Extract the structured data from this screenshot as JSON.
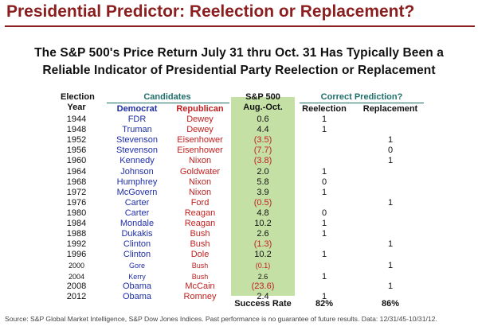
{
  "title": "Presidential Predictor: Reelection or Replacement?",
  "subtitle_line1": "The S&P 500's Price Return July 31 thru Oct. 31 Has Typically Been a",
  "subtitle_line2": "Reliable Indicator of Presidential Party Reelection or Replacement",
  "chart_data": {
    "type": "table",
    "headers": {
      "election_top": "Election",
      "election_bottom": "Year",
      "candidates": "Candidates",
      "democrat": "Democrat",
      "republican": "Republican",
      "sp_top": "S&P 500",
      "sp_bottom": "Aug.-Oct.",
      "prediction": "Correct Prediction?",
      "reelection": "Reelection",
      "replacement": "Replacement"
    },
    "rows": [
      {
        "year": "1944",
        "dem": "FDR",
        "rep": "Dewey",
        "value": "0.6",
        "reelection": "1",
        "replacement": ""
      },
      {
        "year": "1948",
        "dem": "Truman",
        "rep": "Dewey",
        "value": "4.4",
        "reelection": "1",
        "replacement": ""
      },
      {
        "year": "1952",
        "dem": "Stevenson",
        "rep": "Eisenhower",
        "value": "(3.5)",
        "reelection": "",
        "replacement": "1"
      },
      {
        "year": "1956",
        "dem": "Stevenson",
        "rep": "Eisenhower",
        "value": "(7.7)",
        "reelection": "",
        "replacement": "0"
      },
      {
        "year": "1960",
        "dem": "Kennedy",
        "rep": "Nixon",
        "value": "(3.8)",
        "reelection": "",
        "replacement": "1"
      },
      {
        "year": "1964",
        "dem": "Johnson",
        "rep": "Goldwater",
        "value": "2.0",
        "reelection": "1",
        "replacement": ""
      },
      {
        "year": "1968",
        "dem": "Humphrey",
        "rep": "Nixon",
        "value": "5.8",
        "reelection": "0",
        "replacement": ""
      },
      {
        "year": "1972",
        "dem": "McGovern",
        "rep": "Nixon",
        "value": "3.9",
        "reelection": "1",
        "replacement": ""
      },
      {
        "year": "1976",
        "dem": "Carter",
        "rep": "Ford",
        "value": "(0.5)",
        "reelection": "",
        "replacement": "1"
      },
      {
        "year": "1980",
        "dem": "Carter",
        "rep": "Reagan",
        "value": "4.8",
        "reelection": "0",
        "replacement": ""
      },
      {
        "year": "1984",
        "dem": "Mondale",
        "rep": "Reagan",
        "value": "10.2",
        "reelection": "1",
        "replacement": ""
      },
      {
        "year": "1988",
        "dem": "Dukakis",
        "rep": "Bush",
        "value": "2.6",
        "reelection": "1",
        "replacement": ""
      },
      {
        "year": "1992",
        "dem": "Clinton",
        "rep": "Bush",
        "value": "(1.3)",
        "reelection": "",
        "replacement": "1"
      },
      {
        "year": "1996",
        "dem": "Clinton",
        "rep": "Dole",
        "value": "10.2",
        "reelection": "1",
        "replacement": ""
      },
      {
        "year": "2000",
        "dem": "Gore",
        "rep": "Bush",
        "value": "(0.1)",
        "reelection": "",
        "replacement": "1",
        "small": true
      },
      {
        "year": "2004",
        "dem": "Kerry",
        "rep": "Bush",
        "value": "2.6",
        "reelection": "1",
        "replacement": "",
        "small": true
      },
      {
        "year": "2008",
        "dem": "Obama",
        "rep": "McCain",
        "value": "(23.6)",
        "reelection": "",
        "replacement": "1"
      },
      {
        "year": "2012",
        "dem": "Obama",
        "rep": "Romney",
        "value": "2.4",
        "reelection": "1",
        "replacement": ""
      }
    ],
    "success_label": "Success Rate",
    "success_reelection": "82%",
    "success_replacement": "86%"
  },
  "footer": "Source: S&P Global Market Intelligence,  S&P Dow Jones Indices. Past performance is no guarantee of future results. Data: 12/31/45-10/31/12."
}
